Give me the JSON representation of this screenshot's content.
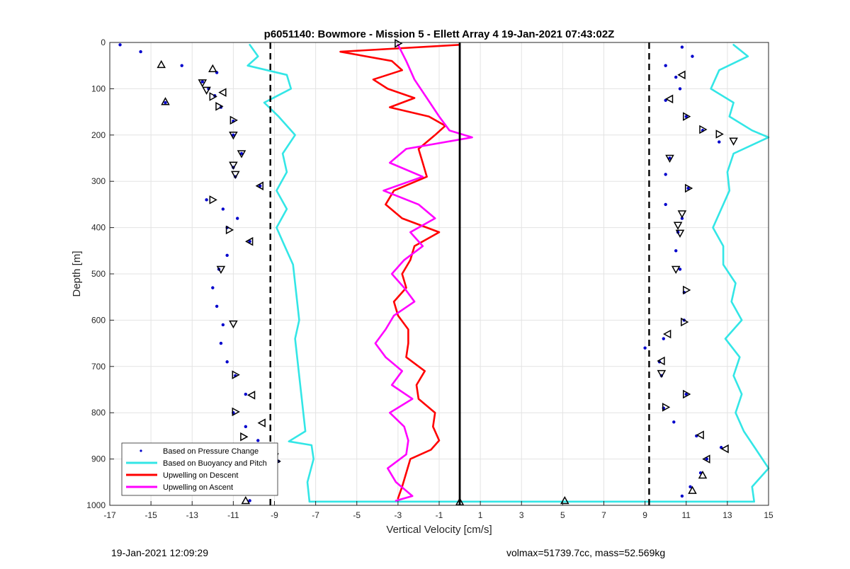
{
  "chart_data": {
    "type": "line",
    "title": "p6051140: Bowmore - Mission 5 - Ellett Array 4 19-Jan-2021 07:43:02Z",
    "xlabel": "Vertical Velocity [cm/s]",
    "ylabel": "Depth [m]",
    "xlim": [
      -17,
      15
    ],
    "ylim": [
      0,
      1000
    ],
    "y_reversed": true,
    "x_ticks": [
      -17,
      -15,
      -13,
      -11,
      -9,
      -7,
      -5,
      -3,
      -1,
      1,
      3,
      5,
      7,
      9,
      11,
      13,
      15
    ],
    "y_ticks": [
      0,
      100,
      200,
      300,
      400,
      500,
      600,
      700,
      800,
      900,
      1000
    ],
    "grid": true,
    "legend_position": "bottom-left",
    "reference_lines": [
      {
        "x": -9.2,
        "style": "dashed",
        "color": "#000000"
      },
      {
        "x": 9.2,
        "style": "dashed",
        "color": "#000000"
      },
      {
        "x": 0,
        "style": "solid",
        "color": "#000000"
      }
    ],
    "series": [
      {
        "name": "Based on Pressure Change",
        "color": "#0000cc",
        "style": "points",
        "segments": [
          {
            "depth": [
              5,
              20,
              50,
              65,
              85,
              100,
              115,
              130,
              140,
              170,
              200,
              240,
              270,
              290,
              310,
              340,
              360,
              380,
              400,
              430,
              460,
              490,
              530,
              570,
              610,
              650,
              690,
              720,
              760,
              800,
              830,
              860,
              880,
              905,
              930,
              960,
              990
            ],
            "x": [
              -16.5,
              -15.5,
              -13.5,
              -11.8,
              -12.5,
              -12.2,
              -11.9,
              -14.3,
              -11.6,
              -11.0,
              -11.0,
              -10.6,
              -11.0,
              -10.9,
              -9.7,
              -12.3,
              -11.5,
              -10.8,
              -11.3,
              -10.2,
              -11.3,
              -11.7,
              -12.0,
              -11.8,
              -11.5,
              -11.6,
              -11.3,
              -10.9,
              -10.4,
              -11.0,
              -10.4,
              -9.8,
              -9.0,
              -8.8,
              -9.0,
              -9.3,
              -10.2
            ]
          },
          {
            "depth": [
              10,
              30,
              50,
              75,
              100,
              125,
              160,
              190,
              215,
              250,
              285,
              315,
              350,
              380,
              410,
              450,
              490,
              540,
              600,
              640,
              660,
              690,
              720,
              760,
              790,
              820,
              850,
              875,
              900,
              930,
              960,
              980
            ],
            "x": [
              10.8,
              11.3,
              10.0,
              10.5,
              10.7,
              10.0,
              11.0,
              11.8,
              12.6,
              10.2,
              10.0,
              11.1,
              10.0,
              10.8,
              10.6,
              10.5,
              10.7,
              10.9,
              10.9,
              9.9,
              9.0,
              9.7,
              9.8,
              11.0,
              9.9,
              10.4,
              11.5,
              12.7,
              12.0,
              11.7,
              11.2,
              10.8
            ]
          }
        ]
      },
      {
        "name": "Based on Buoyancy and Pitch",
        "color": "#33e6e6",
        "style": "line",
        "segments": [
          {
            "depth": [
              5,
              30,
              50,
              70,
              100,
              130,
              160,
              200,
              240,
              280,
              320,
              360,
              400,
              440,
              480,
              520,
              560,
              600,
              640,
              680,
              720,
              760,
              800,
              840,
              862,
              870,
              900,
              950,
              992
            ],
            "x": [
              -10.2,
              -9.8,
              -10.3,
              -8.4,
              -8.2,
              -9.5,
              -8.8,
              -8.0,
              -8.6,
              -8.4,
              -8.9,
              -8.4,
              -8.9,
              -8.5,
              -8.1,
              -8.0,
              -7.9,
              -7.8,
              -8.0,
              -7.9,
              -7.8,
              -7.7,
              -7.6,
              -7.5,
              -8.3,
              -7.2,
              -7.1,
              -7.4,
              -7.3
            ]
          },
          {
            "depth": [
              992,
              992
            ],
            "x": [
              -7.3,
              14.3
            ]
          },
          {
            "depth": [
              5,
              30,
              60,
              100,
              130,
              160,
              190,
              205,
              240,
              280,
              320,
              360,
              400,
              440,
              480,
              520,
              560,
              600,
              640,
              680,
              720,
              760,
              800,
              840,
              880,
              920,
              960,
              992
            ],
            "x": [
              13.3,
              14.0,
              12.6,
              12.2,
              13.3,
              13.1,
              14.2,
              15.0,
              13.3,
              13.0,
              13.1,
              12.7,
              12.3,
              12.8,
              12.8,
              13.4,
              13.2,
              13.7,
              12.9,
              13.6,
              13.3,
              13.7,
              13.4,
              13.8,
              14.4,
              15.0,
              14.2,
              14.3
            ]
          }
        ]
      },
      {
        "name": "Upwelling on Descent",
        "color": "#ff0000",
        "style": "line",
        "segments": [
          {
            "depth": [
              5,
              20,
              40,
              60,
              80,
              100,
              120,
              140,
              160,
              180,
              200,
              230,
              260,
              290,
              320,
              350,
              380,
              410,
              440,
              470,
              500,
              530,
              560,
              590,
              620,
              650,
              680,
              710,
              740,
              770,
              800,
              830,
              860,
              880,
              900,
              930,
              960,
              985
            ],
            "x": [
              0.0,
              -5.8,
              -3.3,
              -2.8,
              -4.2,
              -3.5,
              -2.2,
              -3.4,
              -1.5,
              -0.7,
              -1.2,
              -2.0,
              -1.8,
              -1.6,
              -3.2,
              -3.6,
              -2.8,
              -1.0,
              -2.2,
              -2.4,
              -2.8,
              -2.6,
              -3.2,
              -3.0,
              -2.5,
              -2.5,
              -2.6,
              -1.7,
              -2.1,
              -2.0,
              -1.2,
              -1.3,
              -1.0,
              -1.4,
              -2.4,
              -2.6,
              -2.8,
              -3.0
            ]
          }
        ]
      },
      {
        "name": "Upwelling on Ascent",
        "color": "#ff00ff",
        "style": "line",
        "segments": [
          {
            "depth": [
              5,
              40,
              80,
              120,
              160,
              190,
              205,
              230,
              260,
              290,
              320,
              350,
              380,
              410,
              440,
              470,
              500,
              530,
              560,
              590,
              620,
              650,
              680,
              710,
              740,
              770,
              800,
              830,
              860,
              890,
              920,
              950,
              980,
              990
            ],
            "x": [
              -3.0,
              -2.6,
              -2.2,
              -1.6,
              -1.0,
              -0.5,
              0.6,
              -2.6,
              -3.4,
              -1.8,
              -3.7,
              -2.0,
              -1.2,
              -2.4,
              -1.8,
              -2.7,
              -3.3,
              -2.7,
              -2.2,
              -3.2,
              -3.6,
              -4.1,
              -3.6,
              -2.8,
              -3.3,
              -2.3,
              -3.4,
              -2.7,
              -2.5,
              -2.6,
              -3.5,
              -3.1,
              -2.3,
              -3.1
            ]
          }
        ]
      }
    ],
    "markers": [
      {
        "x": -14.5,
        "depth": 48,
        "shape": "triangle-up"
      },
      {
        "x": -12.0,
        "depth": 57,
        "shape": "triangle-up"
      },
      {
        "x": -12.5,
        "depth": 87,
        "shape": "triangle-down"
      },
      {
        "x": -12.3,
        "depth": 103,
        "shape": "triangle-down"
      },
      {
        "x": -11.5,
        "depth": 108,
        "shape": "triangle-left"
      },
      {
        "x": -12.0,
        "depth": 117,
        "shape": "triangle-right"
      },
      {
        "x": -14.3,
        "depth": 128,
        "shape": "triangle-up"
      },
      {
        "x": -11.7,
        "depth": 138,
        "shape": "triangle-right"
      },
      {
        "x": -11.0,
        "depth": 168,
        "shape": "triangle-right"
      },
      {
        "x": -11.0,
        "depth": 200,
        "shape": "triangle-down"
      },
      {
        "x": -10.6,
        "depth": 240,
        "shape": "triangle-down"
      },
      {
        "x": -11.0,
        "depth": 265,
        "shape": "triangle-down"
      },
      {
        "x": -10.9,
        "depth": 285,
        "shape": "triangle-down"
      },
      {
        "x": -9.7,
        "depth": 310,
        "shape": "triangle-left"
      },
      {
        "x": -12.0,
        "depth": 340,
        "shape": "triangle-right"
      },
      {
        "x": -11.2,
        "depth": 405,
        "shape": "triangle-right"
      },
      {
        "x": -10.2,
        "depth": 430,
        "shape": "triangle-left"
      },
      {
        "x": -11.6,
        "depth": 490,
        "shape": "triangle-down"
      },
      {
        "x": -11.0,
        "depth": 608,
        "shape": "triangle-down"
      },
      {
        "x": -10.9,
        "depth": 718,
        "shape": "triangle-right"
      },
      {
        "x": -10.1,
        "depth": 762,
        "shape": "triangle-left"
      },
      {
        "x": -10.9,
        "depth": 798,
        "shape": "triangle-right"
      },
      {
        "x": -9.6,
        "depth": 822,
        "shape": "triangle-left"
      },
      {
        "x": -10.5,
        "depth": 852,
        "shape": "triangle-right"
      },
      {
        "x": -9.5,
        "depth": 880,
        "shape": "triangle-left"
      },
      {
        "x": -9.0,
        "depth": 895,
        "shape": "triangle-down"
      },
      {
        "x": -8.9,
        "depth": 905,
        "shape": "triangle-right"
      },
      {
        "x": -10.4,
        "depth": 990,
        "shape": "triangle-up"
      },
      {
        "x": -3.0,
        "depth": 2,
        "shape": "triangle-right"
      },
      {
        "x": 0.0,
        "depth": 993,
        "shape": "triangle-up"
      },
      {
        "x": 5.1,
        "depth": 990,
        "shape": "triangle-up"
      },
      {
        "x": 10.8,
        "depth": 70,
        "shape": "triangle-left"
      },
      {
        "x": 10.2,
        "depth": 122,
        "shape": "triangle-left"
      },
      {
        "x": 11.0,
        "depth": 160,
        "shape": "triangle-right"
      },
      {
        "x": 11.8,
        "depth": 188,
        "shape": "triangle-right"
      },
      {
        "x": 12.6,
        "depth": 198,
        "shape": "triangle-right"
      },
      {
        "x": 13.3,
        "depth": 213,
        "shape": "triangle-down"
      },
      {
        "x": 10.2,
        "depth": 250,
        "shape": "triangle-down"
      },
      {
        "x": 11.1,
        "depth": 315,
        "shape": "triangle-right"
      },
      {
        "x": 10.8,
        "depth": 370,
        "shape": "triangle-down"
      },
      {
        "x": 10.6,
        "depth": 395,
        "shape": "triangle-down"
      },
      {
        "x": 10.7,
        "depth": 412,
        "shape": "triangle-down"
      },
      {
        "x": 10.5,
        "depth": 490,
        "shape": "triangle-down"
      },
      {
        "x": 11.0,
        "depth": 535,
        "shape": "triangle-right"
      },
      {
        "x": 10.9,
        "depth": 604,
        "shape": "triangle-right"
      },
      {
        "x": 10.1,
        "depth": 630,
        "shape": "triangle-left"
      },
      {
        "x": 9.8,
        "depth": 688,
        "shape": "triangle-left"
      },
      {
        "x": 9.8,
        "depth": 715,
        "shape": "triangle-down"
      },
      {
        "x": 11.0,
        "depth": 760,
        "shape": "triangle-right"
      },
      {
        "x": 10.0,
        "depth": 788,
        "shape": "triangle-right"
      },
      {
        "x": 11.7,
        "depth": 848,
        "shape": "triangle-left"
      },
      {
        "x": 12.9,
        "depth": 878,
        "shape": "triangle-left"
      },
      {
        "x": 12.0,
        "depth": 900,
        "shape": "triangle-left"
      },
      {
        "x": 11.8,
        "depth": 935,
        "shape": "triangle-up"
      },
      {
        "x": 11.3,
        "depth": 968,
        "shape": "triangle-up"
      }
    ]
  },
  "footer": {
    "timestamp": "19-Jan-2021 12:09:29",
    "vehicle_info": "volmax=51739.7cc, mass=52.569kg"
  }
}
